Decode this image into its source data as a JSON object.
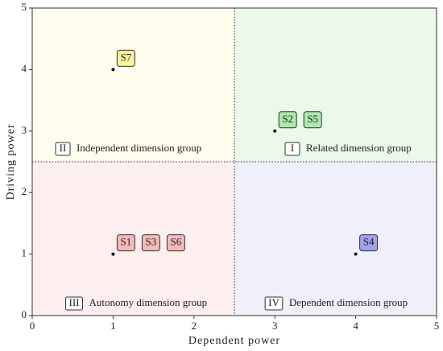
{
  "chart_data": {
    "type": "scatter",
    "xlabel": "Dependent power",
    "ylabel": "Driving power",
    "xlim": [
      0,
      5
    ],
    "ylim": [
      0,
      5
    ],
    "xticks": [
      0,
      1,
      2,
      3,
      4,
      5
    ],
    "yticks": [
      0,
      1,
      2,
      3,
      4,
      5
    ],
    "dividers": {
      "x": 2.5,
      "y": 2.5
    },
    "quadrants": [
      {
        "numeral": "I",
        "label": "Related dimension group",
        "color": "#ebf9ea"
      },
      {
        "numeral": "II",
        "label": "Independent dimension group",
        "color": "#fefdee"
      },
      {
        "numeral": "III",
        "label": "Autonomy dimension group",
        "color": "#fdefef"
      },
      {
        "numeral": "IV",
        "label": "Dependent dimension group",
        "color": "#f0f0fa"
      }
    ],
    "points": [
      {
        "x": 1,
        "y": 4,
        "labels": [
          "S7"
        ],
        "color": "#f8f49c"
      },
      {
        "x": 3,
        "y": 3,
        "labels": [
          "S2",
          "S5"
        ],
        "color": "#a9eba9"
      },
      {
        "x": 1,
        "y": 1,
        "labels": [
          "S1",
          "S3",
          "S6"
        ],
        "color": "#f4b9b9"
      },
      {
        "x": 4,
        "y": 1,
        "labels": [
          "S4"
        ],
        "color": "#a0a1ef"
      }
    ]
  }
}
